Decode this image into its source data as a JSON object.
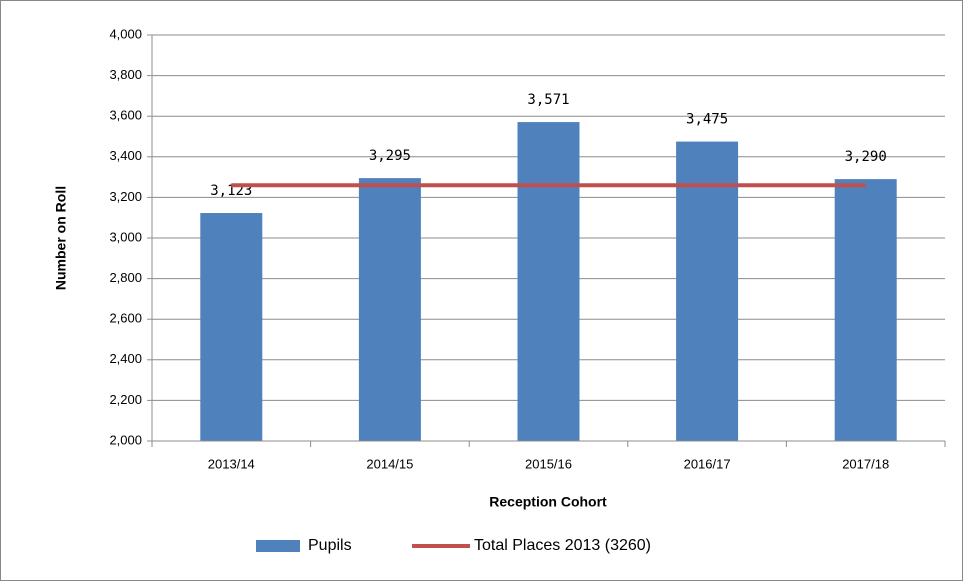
{
  "chart_data": {
    "type": "bar",
    "x_label": "Reception Cohort",
    "y_label": "Number on Roll",
    "categories": [
      "2013/14",
      "2014/15",
      "2015/16",
      "2016/17",
      "2017/18"
    ],
    "series": [
      {
        "name": "Pupils",
        "type": "bar",
        "color": "#4f81bd",
        "values": [
          3123,
          3295,
          3571,
          3475,
          3290
        ],
        "value_labels": [
          "3,123",
          "3,295",
          "3,571",
          "3,475",
          "3,290"
        ]
      },
      {
        "name": "Total Places 2013 (3260)",
        "type": "line",
        "color": "#c0504d",
        "values": [
          3260,
          3260,
          3260,
          3260,
          3260
        ]
      }
    ],
    "ylim": [
      2000,
      4000
    ],
    "yticks": [
      {
        "value": 2000,
        "label": "2,000"
      },
      {
        "value": 2200,
        "label": "2,200"
      },
      {
        "value": 2400,
        "label": "2,400"
      },
      {
        "value": 2600,
        "label": "2,600"
      },
      {
        "value": 2800,
        "label": "2,800"
      },
      {
        "value": 3000,
        "label": "3,000"
      },
      {
        "value": 3200,
        "label": "3,200"
      },
      {
        "value": 3400,
        "label": "3,400"
      },
      {
        "value": 3600,
        "label": "3,600"
      },
      {
        "value": 3800,
        "label": "3,800"
      },
      {
        "value": 4000,
        "label": "4,000"
      }
    ],
    "grid": true,
    "legend": "bottom"
  }
}
